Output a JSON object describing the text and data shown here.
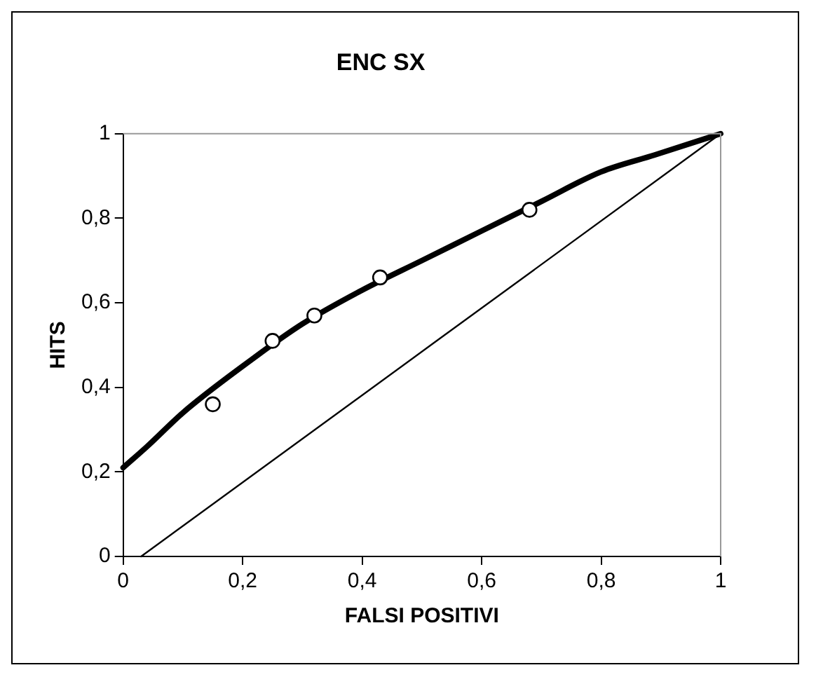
{
  "chart_data": {
    "type": "scatter",
    "title": "ENC SX",
    "xlabel": "FALSI POSITIVI",
    "ylabel": "HITS",
    "xlim": [
      0,
      1
    ],
    "ylim": [
      0,
      1
    ],
    "xticks": [
      0,
      {
        "value": 0.2,
        "label": "0,2"
      },
      {
        "value": 0.4,
        "label": "0,4"
      },
      {
        "value": 0.6,
        "label": "0,6"
      },
      {
        "value": 0.8,
        "label": "0,8"
      },
      1
    ],
    "yticks": [
      0,
      {
        "value": 0.2,
        "label": "0,2"
      },
      {
        "value": 0.4,
        "label": "0,4"
      },
      {
        "value": 0.6,
        "label": "0,6"
      },
      {
        "value": 0.8,
        "label": "0,8"
      },
      1
    ],
    "grid": false,
    "legend": false,
    "series": [
      {
        "color": "#000000",
        "marker": "circle",
        "x": [
          0.15,
          0.25,
          0.32,
          0.43,
          0.68
        ],
        "values": [
          0.36,
          0.51,
          0.57,
          0.66,
          0.82
        ]
      },
      {
        "type": "line",
        "color": "#000000",
        "marker": "none",
        "x": [
          0,
          0.04,
          0.1,
          0.2,
          0.3,
          0.4,
          0.5,
          0.6,
          0.7,
          0.8,
          0.89,
          1
        ],
        "values": [
          0.21,
          0.26,
          0.34,
          0.45,
          0.55,
          0.63,
          0.7,
          0.77,
          0.84,
          0.91,
          0.95,
          1
        ]
      },
      {
        "type": "line",
        "color": "#000000",
        "marker": "none",
        "x": [
          0.03,
          1
        ],
        "values": [
          0,
          1
        ]
      }
    ]
  }
}
